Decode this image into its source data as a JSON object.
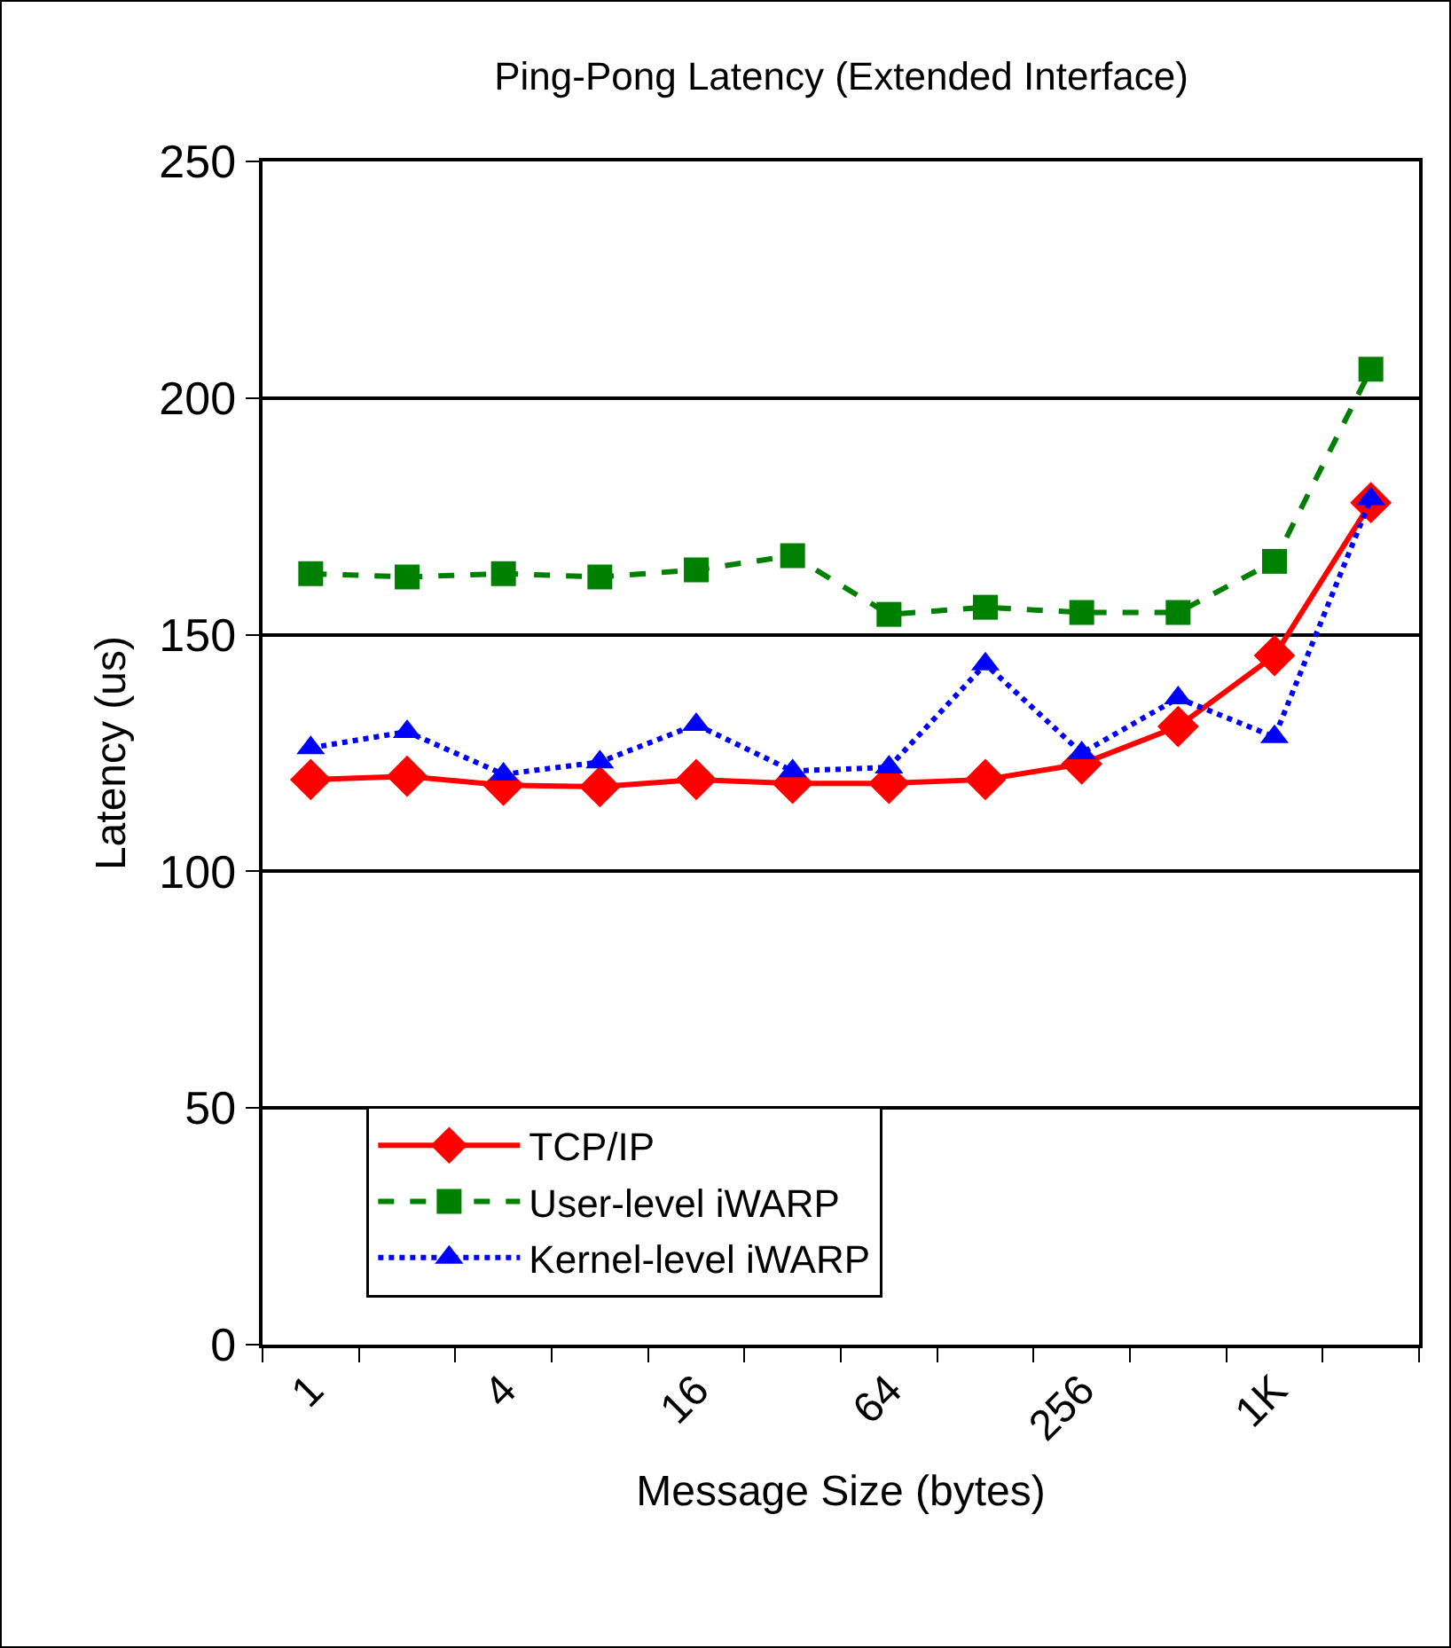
{
  "chart_data": {
    "type": "line",
    "title": "Ping-Pong Latency (Extended Interface)",
    "xlabel": "Message Size (bytes)",
    "ylabel": "Latency (us)",
    "categories": [
      "1",
      null,
      "4",
      null,
      "16",
      null,
      "64",
      null,
      "256",
      null,
      "1K",
      null
    ],
    "series": [
      {
        "name": "TCP/IP",
        "color": "#ff0000",
        "marker": "diamond",
        "line_style": "solid",
        "values": [
          119.4,
          120.1,
          118.2,
          117.9,
          119.4,
          118.6,
          118.6,
          119.4,
          122.7,
          130.6,
          145.6,
          177.9
        ]
      },
      {
        "name": "User-level iWARP",
        "color": "#008000",
        "marker": "square",
        "line_style": "dashed",
        "values": [
          162.9,
          162.2,
          162.9,
          162.2,
          163.7,
          166.7,
          154.3,
          155.8,
          154.7,
          154.7,
          165.5,
          206.1
        ]
      },
      {
        "name": "Kernel-level iWARP",
        "color": "#0000ff",
        "marker": "triangle",
        "line_style": "dotted",
        "values": [
          126.1,
          129.5,
          120.5,
          123.1,
          131.0,
          121.2,
          122.0,
          143.8,
          125.0,
          136.6,
          128.4,
          178.7
        ]
      }
    ],
    "ylim": [
      0,
      250
    ],
    "yticks": [
      0,
      50,
      100,
      150,
      200,
      250
    ],
    "grid": "y",
    "legend": "bottom left"
  }
}
